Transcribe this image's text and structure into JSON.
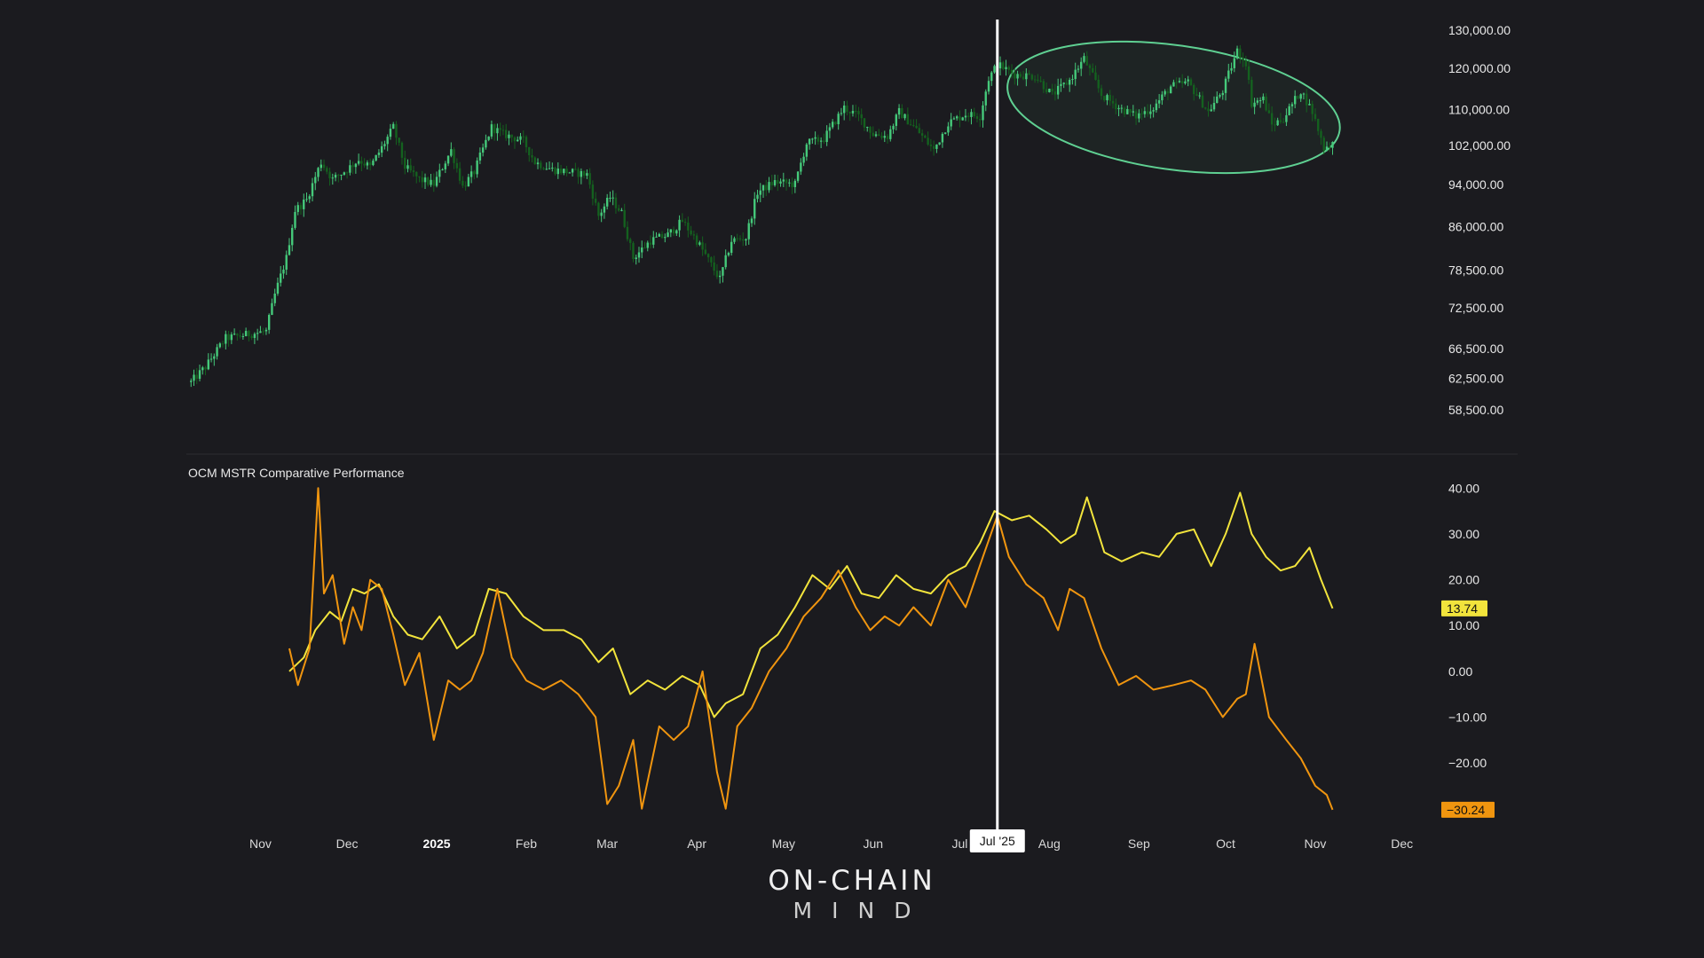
{
  "colors": {
    "background": "#1b1b1f",
    "candle_up": "#45c97a",
    "candle_down": "#14611f",
    "ellipse": "#5fd092",
    "series_a": "#f2e43c",
    "series_b": "#f0950f",
    "cursor": "#ffffff",
    "divider": "#2c2c31"
  },
  "logo": {
    "line1": "ON-CHAIN",
    "line2": "MIND"
  },
  "chart_data": [
    {
      "type": "candlestick",
      "title": "",
      "scale": "log",
      "y_ticks": [
        {
          "value": 130000,
          "label": "130,000.00"
        },
        {
          "value": 120000,
          "label": "120,000.00"
        },
        {
          "value": 110000,
          "label": "110,000.00"
        },
        {
          "value": 102000,
          "label": "102,000.00"
        },
        {
          "value": 94000,
          "label": "94,000.00"
        },
        {
          "value": 86000,
          "label": "86,000.00"
        },
        {
          "value": 78500,
          "label": "78,500.00"
        },
        {
          "value": 72500,
          "label": "72,500.00"
        },
        {
          "value": 66500,
          "label": "66,500.00"
        },
        {
          "value": 62500,
          "label": "62,500.00"
        },
        {
          "value": 58500,
          "label": "58,500.00"
        }
      ],
      "ylim": [
        55500,
        134000
      ],
      "x_range": [
        "2024-10-07",
        "2025-12-14"
      ],
      "price_path": [
        [
          "2024-10-08",
          62000
        ],
        [
          "2024-10-13",
          64000
        ],
        [
          "2024-10-20",
          68000
        ],
        [
          "2024-10-27",
          68500
        ],
        [
          "2024-11-03",
          69000
        ],
        [
          "2024-11-06",
          74500
        ],
        [
          "2024-11-10",
          80500
        ],
        [
          "2024-11-13",
          89000
        ],
        [
          "2024-11-17",
          91000
        ],
        [
          "2024-11-22",
          98500
        ],
        [
          "2024-11-26",
          95000
        ],
        [
          "2024-12-01",
          97000
        ],
        [
          "2024-12-05",
          99000
        ],
        [
          "2024-12-09",
          97500
        ],
        [
          "2024-12-13",
          101500
        ],
        [
          "2024-12-17",
          106000
        ],
        [
          "2024-12-21",
          97500
        ],
        [
          "2024-12-26",
          95000
        ],
        [
          "2024-12-31",
          94000
        ],
        [
          "2025-01-06",
          101000
        ],
        [
          "2025-01-10",
          93500
        ],
        [
          "2025-01-14",
          96500
        ],
        [
          "2025-01-20",
          106000
        ],
        [
          "2025-01-24",
          104500
        ],
        [
          "2025-01-31",
          103000
        ],
        [
          "2025-02-04",
          98500
        ],
        [
          "2025-02-10",
          97000
        ],
        [
          "2025-02-16",
          96500
        ],
        [
          "2025-02-22",
          96000
        ],
        [
          "2025-02-26",
          88000
        ],
        [
          "2025-03-02",
          91500
        ],
        [
          "2025-03-06",
          88500
        ],
        [
          "2025-03-10",
          80500
        ],
        [
          "2025-03-16",
          83500
        ],
        [
          "2025-03-22",
          84500
        ],
        [
          "2025-03-27",
          87000
        ],
        [
          "2025-04-01",
          83500
        ],
        [
          "2025-04-07",
          78500
        ],
        [
          "2025-04-09",
          77000
        ],
        [
          "2025-04-13",
          83500
        ],
        [
          "2025-04-18",
          84000
        ],
        [
          "2025-04-22",
          92500
        ],
        [
          "2025-04-28",
          94500
        ],
        [
          "2025-05-05",
          94000
        ],
        [
          "2025-05-09",
          102500
        ],
        [
          "2025-05-15",
          103500
        ],
        [
          "2025-05-22",
          110500
        ],
        [
          "2025-05-27",
          108500
        ],
        [
          "2025-06-01",
          104500
        ],
        [
          "2025-06-06",
          104000
        ],
        [
          "2025-06-10",
          109500
        ],
        [
          "2025-06-16",
          105500
        ],
        [
          "2025-06-22",
          101000
        ],
        [
          "2025-06-27",
          107000
        ],
        [
          "2025-07-03",
          109000
        ],
        [
          "2025-07-08",
          108500
        ],
        [
          "2025-07-11",
          117500
        ],
        [
          "2025-07-14",
          121000
        ],
        [
          "2025-07-20",
          118500
        ],
        [
          "2025-07-27",
          118000
        ],
        [
          "2025-08-02",
          113500
        ],
        [
          "2025-08-08",
          117000
        ],
        [
          "2025-08-13",
          122500
        ],
        [
          "2025-08-19",
          113500
        ],
        [
          "2025-08-25",
          110500
        ],
        [
          "2025-08-31",
          108500
        ],
        [
          "2025-09-06",
          110500
        ],
        [
          "2025-09-12",
          115500
        ],
        [
          "2025-09-18",
          116500
        ],
        [
          "2025-09-25",
          109500
        ],
        [
          "2025-09-30",
          114500
        ],
        [
          "2025-10-05",
          124500
        ],
        [
          "2025-10-08",
          121500
        ],
        [
          "2025-10-10",
          111500
        ],
        [
          "2025-10-14",
          112500
        ],
        [
          "2025-10-17",
          106500
        ],
        [
          "2025-10-21",
          108000
        ],
        [
          "2025-10-27",
          114500
        ],
        [
          "2025-10-31",
          109500
        ],
        [
          "2025-11-04",
          101500
        ],
        [
          "2025-11-07",
          102500
        ]
      ]
    },
    {
      "type": "line",
      "title": "OCM MSTR Comparative Performance",
      "y_ticks": [
        {
          "value": 40,
          "label": "40.00"
        },
        {
          "value": 30,
          "label": "30.00"
        },
        {
          "value": 20,
          "label": "20.00"
        },
        {
          "value": 10,
          "label": "10.00"
        },
        {
          "value": 0,
          "label": "0.00"
        },
        {
          "value": -10,
          "label": "−10.00"
        },
        {
          "value": -20,
          "label": "−20.00"
        }
      ],
      "ylim": [
        -32,
        42
      ],
      "series": [
        {
          "color": "#f2e43c",
          "last_value": 13.74,
          "last_label": "13.74",
          "points": [
            [
              "2024-11-11",
              0
            ],
            [
              "2024-11-16",
              3
            ],
            [
              "2024-11-20",
              9
            ],
            [
              "2024-11-25",
              13
            ],
            [
              "2024-11-29",
              11
            ],
            [
              "2024-12-03",
              18
            ],
            [
              "2024-12-07",
              17
            ],
            [
              "2024-12-12",
              19
            ],
            [
              "2024-12-17",
              12
            ],
            [
              "2024-12-22",
              8
            ],
            [
              "2024-12-27",
              7
            ],
            [
              "2025-01-02",
              12
            ],
            [
              "2025-01-08",
              5
            ],
            [
              "2025-01-14",
              8
            ],
            [
              "2025-01-19",
              18
            ],
            [
              "2025-01-25",
              17
            ],
            [
              "2025-01-31",
              12
            ],
            [
              "2025-02-07",
              9
            ],
            [
              "2025-02-14",
              9
            ],
            [
              "2025-02-20",
              7
            ],
            [
              "2025-02-26",
              2
            ],
            [
              "2025-03-03",
              5
            ],
            [
              "2025-03-09",
              -5
            ],
            [
              "2025-03-15",
              -2
            ],
            [
              "2025-03-21",
              -4
            ],
            [
              "2025-03-27",
              -1
            ],
            [
              "2025-04-02",
              -3
            ],
            [
              "2025-04-07",
              -10
            ],
            [
              "2025-04-11",
              -7
            ],
            [
              "2025-04-17",
              -5
            ],
            [
              "2025-04-23",
              5
            ],
            [
              "2025-04-29",
              8
            ],
            [
              "2025-05-05",
              14
            ],
            [
              "2025-05-11",
              21
            ],
            [
              "2025-05-17",
              18
            ],
            [
              "2025-05-23",
              23
            ],
            [
              "2025-05-28",
              17
            ],
            [
              "2025-06-03",
              16
            ],
            [
              "2025-06-09",
              21
            ],
            [
              "2025-06-15",
              18
            ],
            [
              "2025-06-21",
              17
            ],
            [
              "2025-06-27",
              21
            ],
            [
              "2025-07-03",
              23
            ],
            [
              "2025-07-08",
              28
            ],
            [
              "2025-07-13",
              35
            ],
            [
              "2025-07-19",
              33
            ],
            [
              "2025-07-25",
              34
            ],
            [
              "2025-07-31",
              31
            ],
            [
              "2025-08-05",
              28
            ],
            [
              "2025-08-10",
              30
            ],
            [
              "2025-08-14",
              38
            ],
            [
              "2025-08-20",
              26
            ],
            [
              "2025-08-26",
              24
            ],
            [
              "2025-09-02",
              26
            ],
            [
              "2025-09-08",
              25
            ],
            [
              "2025-09-14",
              30
            ],
            [
              "2025-09-20",
              31
            ],
            [
              "2025-09-26",
              23
            ],
            [
              "2025-10-01",
              30
            ],
            [
              "2025-10-06",
              39
            ],
            [
              "2025-10-10",
              30
            ],
            [
              "2025-10-15",
              25
            ],
            [
              "2025-10-20",
              22
            ],
            [
              "2025-10-25",
              23
            ],
            [
              "2025-10-30",
              27
            ],
            [
              "2025-11-03",
              20
            ],
            [
              "2025-11-07",
              13.74
            ]
          ]
        },
        {
          "color": "#f0950f",
          "last_value": -30.24,
          "last_label": "−30.24",
          "points": [
            [
              "2024-11-11",
              5
            ],
            [
              "2024-11-14",
              -3
            ],
            [
              "2024-11-18",
              5
            ],
            [
              "2024-11-21",
              40
            ],
            [
              "2024-11-23",
              17
            ],
            [
              "2024-11-26",
              21
            ],
            [
              "2024-11-30",
              6
            ],
            [
              "2024-12-03",
              14
            ],
            [
              "2024-12-06",
              9
            ],
            [
              "2024-12-09",
              20
            ],
            [
              "2024-12-13",
              18
            ],
            [
              "2024-12-17",
              8
            ],
            [
              "2024-12-21",
              -3
            ],
            [
              "2024-12-26",
              4
            ],
            [
              "2024-12-31",
              -15
            ],
            [
              "2025-01-05",
              -2
            ],
            [
              "2025-01-09",
              -4
            ],
            [
              "2025-01-13",
              -2
            ],
            [
              "2025-01-17",
              4
            ],
            [
              "2025-01-22",
              18
            ],
            [
              "2025-01-27",
              3
            ],
            [
              "2025-02-01",
              -2
            ],
            [
              "2025-02-07",
              -4
            ],
            [
              "2025-02-13",
              -2
            ],
            [
              "2025-02-19",
              -5
            ],
            [
              "2025-02-25",
              -10
            ],
            [
              "2025-03-01",
              -29
            ],
            [
              "2025-03-05",
              -25
            ],
            [
              "2025-03-10",
              -15
            ],
            [
              "2025-03-13",
              -30
            ],
            [
              "2025-03-19",
              -12
            ],
            [
              "2025-03-24",
              -15
            ],
            [
              "2025-03-29",
              -12
            ],
            [
              "2025-04-03",
              0
            ],
            [
              "2025-04-08",
              -22
            ],
            [
              "2025-04-11",
              -30
            ],
            [
              "2025-04-15",
              -12
            ],
            [
              "2025-04-20",
              -8
            ],
            [
              "2025-04-26",
              0
            ],
            [
              "2025-05-02",
              5
            ],
            [
              "2025-05-08",
              12
            ],
            [
              "2025-05-14",
              16
            ],
            [
              "2025-05-20",
              22
            ],
            [
              "2025-05-26",
              14
            ],
            [
              "2025-05-31",
              9
            ],
            [
              "2025-06-05",
              12
            ],
            [
              "2025-06-10",
              10
            ],
            [
              "2025-06-15",
              14
            ],
            [
              "2025-06-21",
              10
            ],
            [
              "2025-06-27",
              20
            ],
            [
              "2025-07-03",
              14
            ],
            [
              "2025-07-09",
              25
            ],
            [
              "2025-07-14",
              34
            ],
            [
              "2025-07-18",
              25
            ],
            [
              "2025-07-24",
              19
            ],
            [
              "2025-07-30",
              16
            ],
            [
              "2025-08-04",
              9
            ],
            [
              "2025-08-08",
              18
            ],
            [
              "2025-08-13",
              16
            ],
            [
              "2025-08-19",
              5
            ],
            [
              "2025-08-25",
              -3
            ],
            [
              "2025-08-31",
              -1
            ],
            [
              "2025-09-06",
              -4
            ],
            [
              "2025-09-13",
              -3
            ],
            [
              "2025-09-19",
              -2
            ],
            [
              "2025-09-24",
              -4
            ],
            [
              "2025-09-30",
              -10
            ],
            [
              "2025-10-05",
              -6
            ],
            [
              "2025-10-08",
              -5
            ],
            [
              "2025-10-11",
              6
            ],
            [
              "2025-10-16",
              -10
            ],
            [
              "2025-10-22",
              -15
            ],
            [
              "2025-10-27",
              -19
            ],
            [
              "2025-11-01",
              -25
            ],
            [
              "2025-11-05",
              -27
            ],
            [
              "2025-11-07",
              -30.24
            ]
          ]
        }
      ]
    }
  ],
  "x_axis": {
    "labels": [
      {
        "date": "2024-11-01",
        "label": "Nov",
        "bold": false
      },
      {
        "date": "2024-12-01",
        "label": "Dec",
        "bold": false
      },
      {
        "date": "2025-01-01",
        "label": "2025",
        "bold": true
      },
      {
        "date": "2025-02-01",
        "label": "Feb",
        "bold": false
      },
      {
        "date": "2025-03-01",
        "label": "Mar",
        "bold": false
      },
      {
        "date": "2025-04-01",
        "label": "Apr",
        "bold": false
      },
      {
        "date": "2025-05-01",
        "label": "May",
        "bold": false
      },
      {
        "date": "2025-06-01",
        "label": "Jun",
        "bold": false
      },
      {
        "date": "2025-07-01",
        "label": "Jul",
        "bold": false
      },
      {
        "date": "2025-08-01",
        "label": "Aug",
        "bold": false
      },
      {
        "date": "2025-09-01",
        "label": "Sep",
        "bold": false
      },
      {
        "date": "2025-10-01",
        "label": "Oct",
        "bold": false
      },
      {
        "date": "2025-11-01",
        "label": "Nov",
        "bold": false
      },
      {
        "date": "2025-12-01",
        "label": "Dec",
        "bold": false
      }
    ],
    "cursor": {
      "date": "2025-07-14",
      "label": "Jul '25"
    }
  },
  "annotation": {
    "type": "ellipse",
    "from_date": "2025-07-17",
    "to_date": "2025-11-10",
    "high": 126000,
    "low": 97000
  }
}
